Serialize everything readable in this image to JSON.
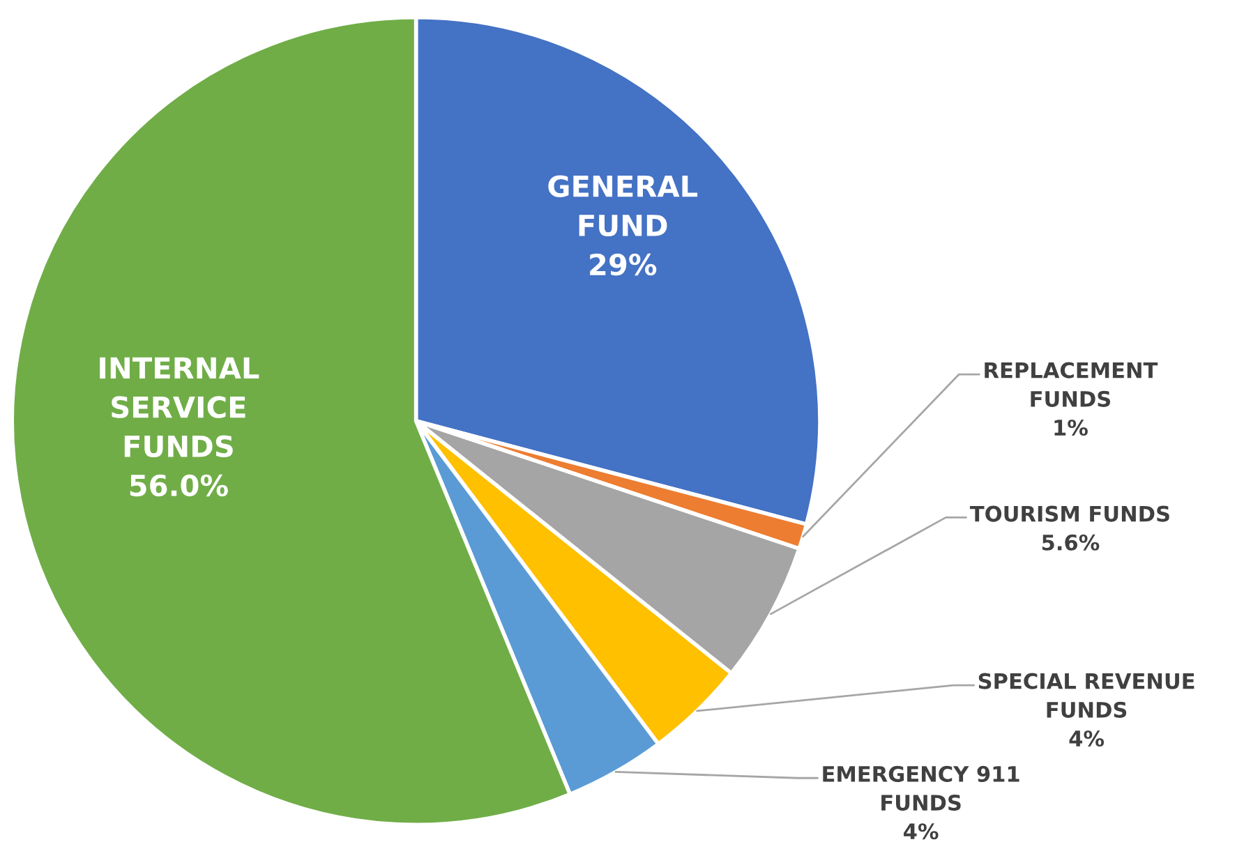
{
  "chart_data": {
    "type": "pie",
    "categories": [
      "GENERAL\nFUND",
      "REPLACEMENT\nFUNDS",
      "TOURISM FUNDS",
      "SPECIAL REVENUE\nFUNDS",
      "EMERGENCY 911\nFUNDS",
      "INTERNAL\nSERVICE\nFUNDS"
    ],
    "values": [
      29,
      1,
      5.6,
      4,
      4,
      56.0
    ],
    "value_labels": [
      "29%",
      "1%",
      "5.6%",
      "4%",
      "4%",
      "56.0%"
    ],
    "colors": [
      "#4472c4",
      "#ed7d31",
      "#a5a5a5",
      "#ffc000",
      "#5b9bd5",
      "#70ad47"
    ],
    "legend": false
  }
}
